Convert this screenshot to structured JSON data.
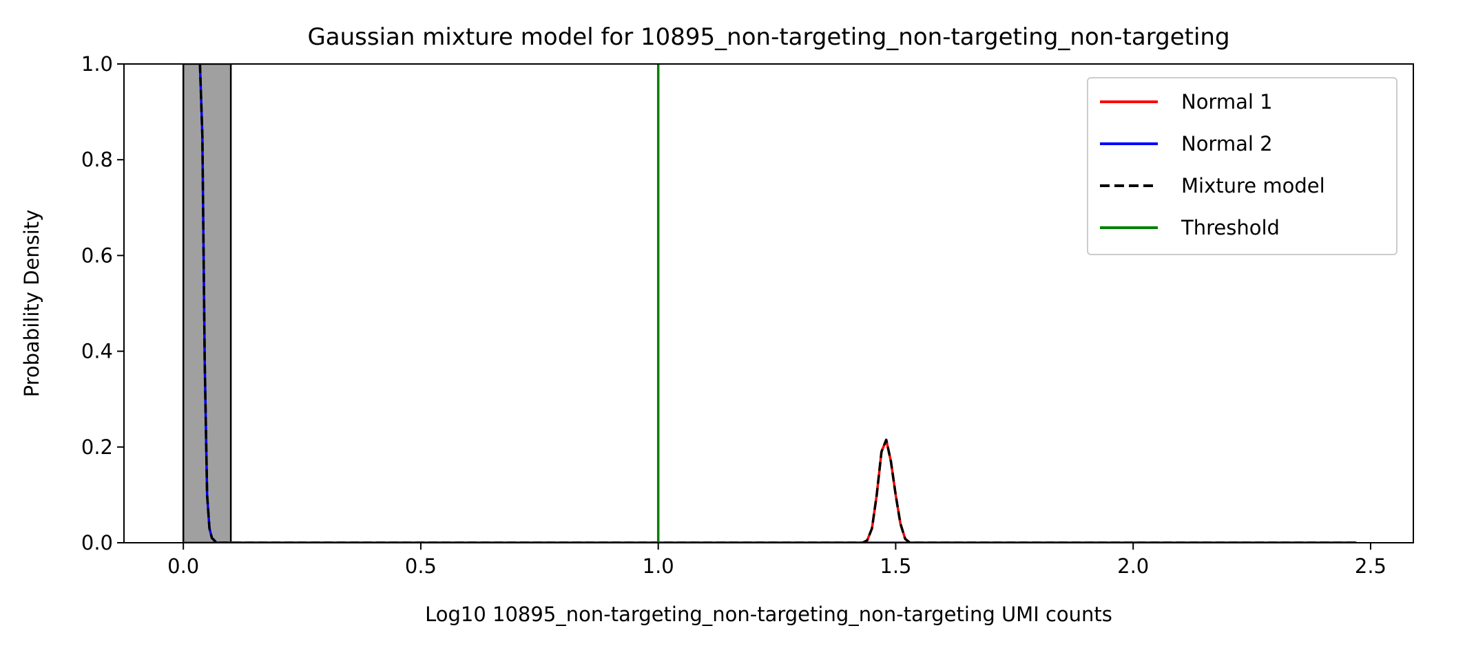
{
  "chart_data": {
    "type": "line",
    "title": "Gaussian mixture model for 10895_non-targeting_non-targeting_non-targeting",
    "xlabel": "Log10 10895_non-targeting_non-targeting_non-targeting UMI counts",
    "ylabel": "Probability Density",
    "xlim": [
      -0.125,
      2.59
    ],
    "ylim": [
      0,
      1.0
    ],
    "xticks": [
      0.0,
      0.5,
      1.0,
      1.5,
      2.0,
      2.5
    ],
    "xtick_labels": [
      "0.0",
      "0.5",
      "1.0",
      "1.5",
      "2.0",
      "2.5"
    ],
    "yticks": [
      0.0,
      0.2,
      0.4,
      0.6,
      0.8,
      1.0
    ],
    "ytick_labels": [
      "0.0",
      "0.2",
      "0.4",
      "0.6",
      "0.8",
      "1.0"
    ],
    "grid": false,
    "legend_position": "top-right",
    "histogram": {
      "color": "#a0a0a0",
      "edge_color": "#000000",
      "bins": [
        {
          "x0": 0.0,
          "x1": 0.1,
          "height": 1.0
        }
      ]
    },
    "series": [
      {
        "name": "Normal 1",
        "color": "#ff0000",
        "style": "solid",
        "x": [
          0.0,
          1.43,
          1.44,
          1.45,
          1.46,
          1.47,
          1.48,
          1.49,
          1.5,
          1.51,
          1.52,
          1.53,
          2.47
        ],
        "y": [
          0.0,
          0.0,
          0.005,
          0.03,
          0.1,
          0.19,
          0.215,
          0.17,
          0.1,
          0.04,
          0.008,
          0.0,
          0.0
        ]
      },
      {
        "name": "Normal 2",
        "color": "#0000ff",
        "style": "solid",
        "x": [
          0.035,
          0.04,
          0.045,
          0.05,
          0.055,
          0.06,
          0.07,
          2.47
        ],
        "y": [
          1.0,
          0.85,
          0.38,
          0.1,
          0.03,
          0.01,
          0.0,
          0.0
        ]
      },
      {
        "name": "Mixture model",
        "color": "#000000",
        "style": "dashed",
        "x": [
          0.035,
          0.04,
          0.045,
          0.05,
          0.055,
          0.06,
          0.07,
          1.43,
          1.44,
          1.45,
          1.46,
          1.47,
          1.48,
          1.49,
          1.5,
          1.51,
          1.52,
          1.53,
          2.47
        ],
        "y": [
          1.0,
          0.85,
          0.38,
          0.1,
          0.03,
          0.01,
          0.0,
          0.0,
          0.005,
          0.03,
          0.1,
          0.19,
          0.215,
          0.17,
          0.1,
          0.04,
          0.008,
          0.0,
          0.0
        ]
      },
      {
        "name": "Threshold",
        "color": "#008000",
        "style": "solid",
        "x": [
          1.0,
          1.0
        ],
        "y": [
          0.0,
          1.0
        ]
      }
    ]
  }
}
